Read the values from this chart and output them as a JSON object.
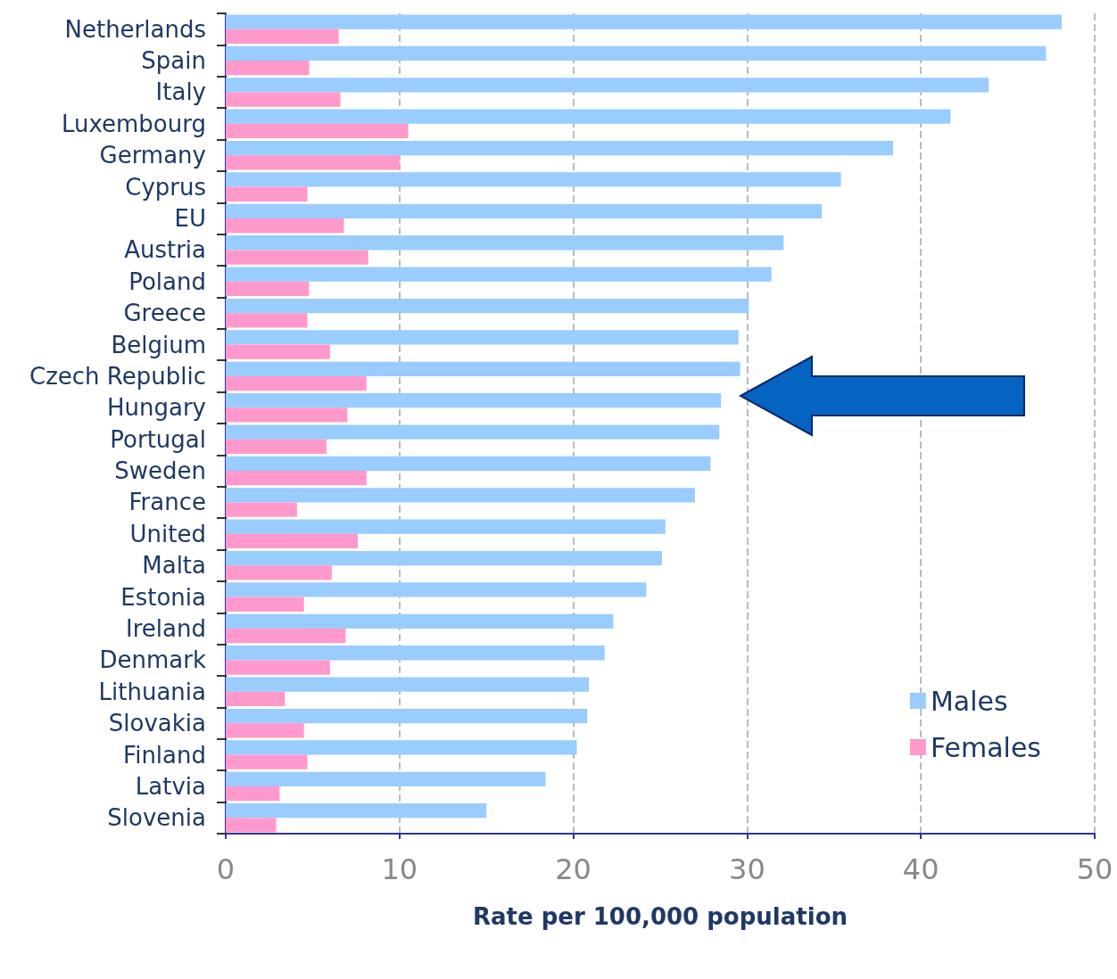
{
  "chart_data": {
    "type": "bar",
    "orientation": "horizontal",
    "xlabel": "Rate per 100,000 population",
    "categories": [
      "Netherlands",
      "Spain",
      "Italy",
      "Luxembourg",
      "Germany",
      "Cyprus",
      "EU",
      "Austria",
      "Poland",
      "Greece",
      "Belgium",
      "Czech Republic",
      "Hungary",
      "Portugal",
      "Sweden",
      "France",
      "United",
      "Malta",
      "Estonia",
      "Ireland",
      "Denmark",
      "Lithuania",
      "Slovakia",
      "Finland",
      "Latvia",
      "Slovenia"
    ],
    "series": [
      {
        "name": "Males",
        "color": "#99ccff",
        "values": [
          48.1,
          47.2,
          43.9,
          41.7,
          38.4,
          35.4,
          34.3,
          32.1,
          31.4,
          30.1,
          29.5,
          29.6,
          28.5,
          28.4,
          27.9,
          27.0,
          25.3,
          25.1,
          24.2,
          22.3,
          21.8,
          20.9,
          20.8,
          20.2,
          18.4,
          15.0
        ]
      },
      {
        "name": "Females",
        "color": "#ff99cc",
        "values": [
          6.5,
          4.8,
          6.6,
          10.5,
          10.0,
          4.7,
          6.8,
          8.2,
          4.8,
          4.7,
          6.0,
          8.1,
          7.0,
          5.8,
          8.1,
          4.1,
          7.6,
          6.1,
          4.5,
          6.9,
          6.0,
          3.4,
          4.5,
          4.7,
          3.1,
          2.9
        ]
      }
    ],
    "xlim": [
      0,
      50
    ],
    "xticks": [
      0,
      10,
      20,
      30,
      40,
      50
    ],
    "grid": "x",
    "legend": "bottom right"
  }
}
